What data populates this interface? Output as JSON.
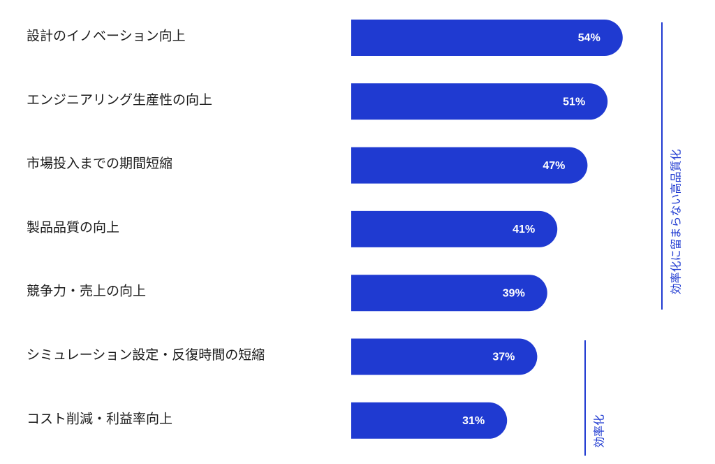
{
  "chart_data": {
    "type": "bar",
    "orientation": "horizontal",
    "categories": [
      "設計のイノベーション向上",
      "エンジニアリング生産性の向上",
      "市場投入までの期間短縮",
      "製品品質の向上",
      "競争力・売上の向上",
      "シミュレーション設定・反復時間の短縮",
      "コスト削減・利益率向上"
    ],
    "values": [
      54,
      51,
      47,
      41,
      39,
      37,
      31
    ],
    "value_labels": [
      "54%",
      "51%",
      "47%",
      "41%",
      "39%",
      "37%",
      "31%"
    ],
    "unit": "%",
    "groups": [
      {
        "label": "効率化に留まらない高品質化",
        "from_index": 0,
        "to_index": 4
      },
      {
        "label": "効率化",
        "from_index": 5,
        "to_index": 6
      }
    ],
    "bar_color": "#1f3ad1",
    "bracket_color": "#1f3ad1",
    "value_label_color": "#ffffff",
    "grid": false,
    "legend": "none"
  }
}
